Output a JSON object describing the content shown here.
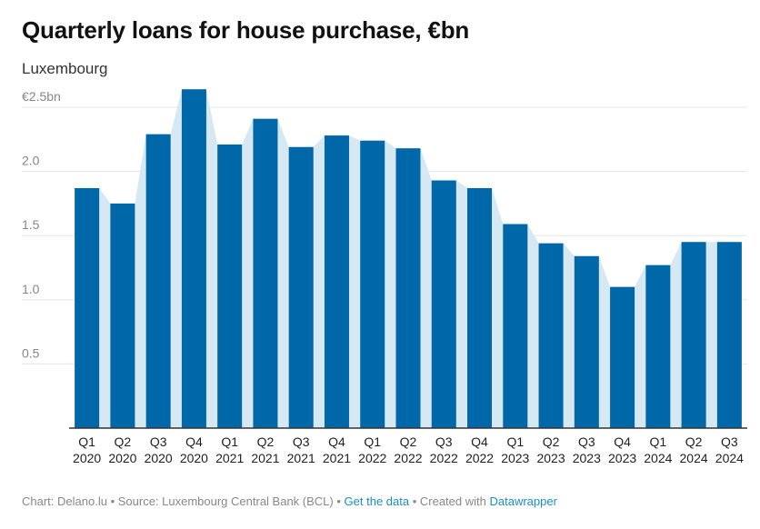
{
  "header": {
    "title": "Quarterly loans for house purchase, €bn",
    "subtitle": "Luxembourg"
  },
  "footer": {
    "chart_credit": "Chart: Delano.lu",
    "separator": " • ",
    "source": "Source: Luxembourg Central Bank (BCL)",
    "get_data_label": "Get the data",
    "created_with": "Created with",
    "tool_link": "Datawrapper"
  },
  "colors": {
    "bar": "#0067a8",
    "area": "#d6e8f2",
    "grid": "#e6e6e6",
    "axis": "#333333"
  },
  "chart_data": {
    "type": "bar",
    "title": "Quarterly loans for house purchase, €bn",
    "subtitle": "Luxembourg",
    "categories": [
      [
        "Q1",
        "2020"
      ],
      [
        "Q2",
        "2020"
      ],
      [
        "Q3",
        "2020"
      ],
      [
        "Q4",
        "2020"
      ],
      [
        "Q1",
        "2021"
      ],
      [
        "Q2",
        "2021"
      ],
      [
        "Q3",
        "2021"
      ],
      [
        "Q4",
        "2021"
      ],
      [
        "Q1",
        "2022"
      ],
      [
        "Q2",
        "2022"
      ],
      [
        "Q3",
        "2022"
      ],
      [
        "Q4",
        "2022"
      ],
      [
        "Q1",
        "2023"
      ],
      [
        "Q2",
        "2023"
      ],
      [
        "Q3",
        "2023"
      ],
      [
        "Q4",
        "2023"
      ],
      [
        "Q1",
        "2024"
      ],
      [
        "Q2",
        "2024"
      ],
      [
        "Q3",
        "2024"
      ]
    ],
    "values": [
      1.87,
      1.75,
      2.29,
      2.64,
      2.21,
      2.41,
      2.19,
      2.28,
      2.24,
      2.18,
      1.93,
      1.87,
      1.59,
      1.44,
      1.34,
      1.1,
      1.27,
      1.45,
      1.45
    ],
    "ylim": [
      0,
      2.5
    ],
    "yticks": [
      0.5,
      1.0,
      1.5,
      2.0,
      2.5
    ],
    "ytick_labels": [
      "0.5",
      "1.0",
      "1.5",
      "2.0",
      "€2.5bn"
    ],
    "grid": true,
    "background_area": true
  }
}
